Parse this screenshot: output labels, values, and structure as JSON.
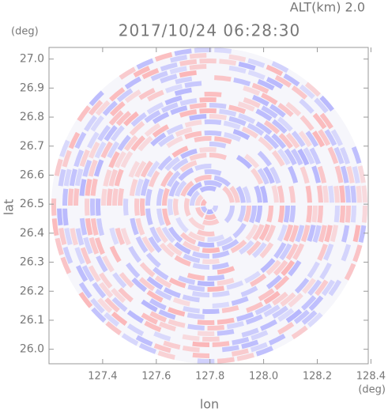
{
  "chart_data": {
    "type": "ppi",
    "title": "2017/10/24 06:28:30",
    "subtitle": "ALT(km) 2.0",
    "x_label": "lon",
    "x_unit": "(deg)",
    "y_label": "lat",
    "y_unit": "(deg)",
    "xlim": [
      127.2,
      128.39
    ],
    "ylim": [
      25.95,
      27.04
    ],
    "xticks": [
      127.4,
      127.6,
      127.8,
      {
        "value": 128.0,
        "label": "128.0"
      },
      128.2,
      128.4
    ],
    "yticks": [
      {
        "value": 26.0,
        "label": "26.0"
      },
      26.1,
      26.2,
      26.3,
      26.4,
      26.5,
      26.6,
      26.7,
      26.8,
      26.9,
      {
        "value": 27.0,
        "label": "27.0"
      }
    ]
  }
}
